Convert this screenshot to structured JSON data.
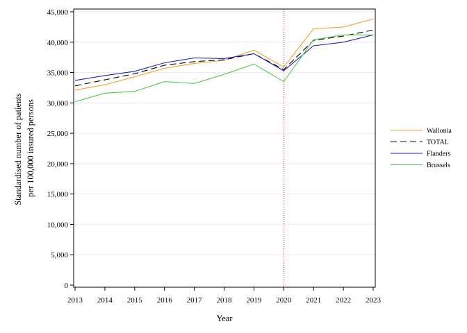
{
  "chart_data": {
    "type": "line",
    "xlabel": "Year",
    "ylabel": [
      "Standardised number of patients",
      "per 100,000 insured persons"
    ],
    "x": [
      2013,
      2014,
      2015,
      2016,
      2017,
      2018,
      2019,
      2020,
      2021,
      2022,
      2023
    ],
    "xticklabels": [
      "2013",
      "2014",
      "2015",
      "2016",
      "2017",
      "2018",
      "2019",
      "2020",
      "2021",
      "2022",
      "2023"
    ],
    "ylim": [
      0,
      45000
    ],
    "yticks": [
      0,
      5000,
      10000,
      15000,
      20000,
      25000,
      30000,
      35000,
      40000,
      45000
    ],
    "yticklabels": [
      "0",
      "5,000",
      "10,000",
      "15,000",
      "20,000",
      "25,000",
      "30,000",
      "35,000",
      "40,000",
      "45,000"
    ],
    "grid": "horizontal",
    "legend_position": "right",
    "vertical_marker": {
      "x": 2020,
      "color": "#c03040",
      "style": "dotted"
    },
    "series": [
      {
        "name": "Wallonia",
        "color": "#f0a030",
        "dash": "solid",
        "values": [
          32100,
          33000,
          34300,
          35700,
          36500,
          37000,
          38700,
          35900,
          42200,
          42500,
          43800
        ]
      },
      {
        "name": "TOTAL",
        "color": "#000000",
        "dash": "dashed",
        "values": [
          32800,
          33800,
          34800,
          36200,
          36800,
          37100,
          38100,
          35500,
          40300,
          41000,
          42000
        ]
      },
      {
        "name": "Flanders",
        "color": "#2020c0",
        "dash": "solid",
        "values": [
          33700,
          34500,
          35200,
          36600,
          37400,
          37300,
          38100,
          35300,
          39400,
          40000,
          41200
        ]
      },
      {
        "name": "Brussels",
        "color": "#50c850",
        "dash": "solid",
        "values": [
          30200,
          31600,
          31900,
          33500,
          33200,
          34700,
          36400,
          33500,
          40400,
          41200,
          41200
        ]
      }
    ]
  }
}
